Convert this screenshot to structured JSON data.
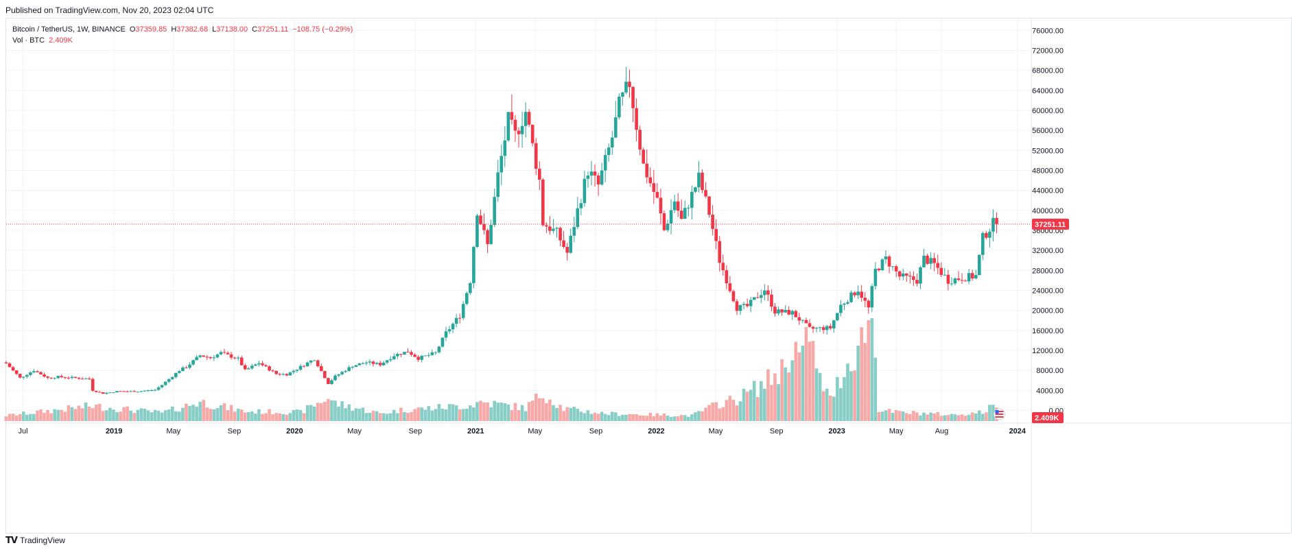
{
  "header": {
    "published": "Published on TradingView.com, Nov 20, 2023 02:04 UTC"
  },
  "legend": {
    "symbol": "Bitcoin / TetherUS, 1W, BINANCE",
    "o_label": "O",
    "o": "37359.85",
    "h_label": "H",
    "h": "37382.68",
    "l_label": "L",
    "l": "37138.00",
    "c_label": "C",
    "c": "37251.11",
    "change": "−108.75 (−0.29%)",
    "vol_label": "Vol · BTC",
    "vol": "2.409K"
  },
  "footer": {
    "brand": "TradingView"
  },
  "colors": {
    "up": "#26a69a",
    "down": "#f23645",
    "up_vol": "#89cdc7",
    "down_vol": "#f7a9a7",
    "grid": "#f0f3fa",
    "axis_text": "#131722"
  },
  "chart_data": {
    "type": "candlestick",
    "interval": "1W",
    "x_range": [
      "2018-05-28",
      "2024-01-29"
    ],
    "y_range": [
      -2000,
      77000
    ],
    "y_ticks": [
      76000,
      72000,
      68000,
      64000,
      60000,
      56000,
      52000,
      48000,
      44000,
      40000,
      36000,
      32000,
      28000,
      24000,
      20000,
      16000,
      12000,
      8000,
      4000,
      0
    ],
    "y_tick_labels": [
      "76000.00",
      "72000.00",
      "68000.00",
      "64000.00",
      "60000.00",
      "56000.00",
      "52000.00",
      "48000.00",
      "44000.00",
      "40000.00",
      "36000.00",
      "32000.00",
      "28000.00",
      "24000.00",
      "20000.00",
      "16000.00",
      "12000.00",
      "8000.00",
      "4000.00",
      "0.00"
    ],
    "x_ticks": [
      {
        "date": "2018-07-01",
        "label": "Jul"
      },
      {
        "date": "2019-01-01",
        "label": "2019"
      },
      {
        "date": "2019-05-01",
        "label": "May"
      },
      {
        "date": "2019-09-01",
        "label": "Sep"
      },
      {
        "date": "2020-01-01",
        "label": "2020"
      },
      {
        "date": "2020-05-01",
        "label": "May"
      },
      {
        "date": "2020-09-01",
        "label": "Sep"
      },
      {
        "date": "2021-01-01",
        "label": "2021"
      },
      {
        "date": "2021-05-01",
        "label": "May"
      },
      {
        "date": "2021-09-01",
        "label": "Sep"
      },
      {
        "date": "2022-01-01",
        "label": "2022"
      },
      {
        "date": "2022-05-01",
        "label": "May"
      },
      {
        "date": "2022-09-01",
        "label": "Sep"
      },
      {
        "date": "2023-01-01",
        "label": "2023"
      },
      {
        "date": "2023-05-01",
        "label": "May"
      },
      {
        "date": "2023-08-01",
        "label": "Aug"
      },
      {
        "date": "2024-01-01",
        "label": "2024"
      }
    ],
    "close_path": [
      [
        "2018-05-28",
        9400
      ],
      [
        "2018-06-25",
        6500
      ],
      [
        "2018-07-23",
        8000
      ],
      [
        "2018-08-20",
        6500
      ],
      [
        "2018-09-10",
        6700
      ],
      [
        "2018-10-15",
        6500
      ],
      [
        "2018-11-12",
        6300
      ],
      [
        "2018-11-19",
        4000
      ],
      [
        "2018-12-10",
        3400
      ],
      [
        "2019-01-07",
        3800
      ],
      [
        "2019-02-18",
        3800
      ],
      [
        "2019-03-25",
        4100
      ],
      [
        "2019-04-08",
        5100
      ],
      [
        "2019-05-13",
        8000
      ],
      [
        "2019-05-27",
        8700
      ],
      [
        "2019-06-24",
        11000
      ],
      [
        "2019-07-15",
        10500
      ],
      [
        "2019-08-05",
        11500
      ],
      [
        "2019-09-09",
        10300
      ],
      [
        "2019-09-23",
        8000
      ],
      [
        "2019-10-21",
        9500
      ],
      [
        "2019-11-25",
        7300
      ],
      [
        "2019-12-16",
        7200
      ],
      [
        "2020-01-13",
        8700
      ],
      [
        "2020-02-10",
        10300
      ],
      [
        "2020-03-09",
        5400
      ],
      [
        "2020-03-23",
        6800
      ],
      [
        "2020-04-27",
        8900
      ],
      [
        "2020-05-25",
        9600
      ],
      [
        "2020-06-22",
        9200
      ],
      [
        "2020-07-20",
        11000
      ],
      [
        "2020-08-17",
        11800
      ],
      [
        "2020-09-07",
        10400
      ],
      [
        "2020-10-12",
        11500
      ],
      [
        "2020-11-02",
        15500
      ],
      [
        "2020-11-30",
        19000
      ],
      [
        "2020-12-21",
        26000
      ],
      [
        "2021-01-04",
        40000
      ],
      [
        "2021-01-25",
        33000
      ],
      [
        "2021-02-15",
        47000
      ],
      [
        "2021-03-08",
        58000
      ],
      [
        "2021-03-22",
        55000
      ],
      [
        "2021-04-12",
        59800
      ],
      [
        "2021-05-10",
        46000
      ],
      [
        "2021-05-17",
        37500
      ],
      [
        "2021-06-14",
        35500
      ],
      [
        "2021-07-05",
        31500
      ],
      [
        "2021-07-26",
        40000
      ],
      [
        "2021-08-16",
        48000
      ],
      [
        "2021-09-06",
        45000
      ],
      [
        "2021-10-04",
        54600
      ],
      [
        "2021-10-18",
        61000
      ],
      [
        "2021-11-08",
        65500
      ],
      [
        "2021-11-22",
        57000
      ],
      [
        "2021-12-06",
        49000
      ],
      [
        "2022-01-03",
        42000
      ],
      [
        "2022-01-17",
        36000
      ],
      [
        "2022-02-07",
        42000
      ],
      [
        "2022-02-21",
        38000
      ],
      [
        "2022-03-28",
        46500
      ],
      [
        "2022-04-18",
        39500
      ],
      [
        "2022-05-09",
        30000
      ],
      [
        "2022-06-13",
        20500
      ],
      [
        "2022-07-04",
        20800
      ],
      [
        "2022-08-08",
        24200
      ],
      [
        "2022-08-29",
        19800
      ],
      [
        "2022-10-03",
        19500
      ],
      [
        "2022-11-07",
        16300
      ],
      [
        "2022-12-19",
        16500
      ],
      [
        "2023-01-09",
        21000
      ],
      [
        "2023-02-13",
        24200
      ],
      [
        "2023-03-06",
        20400
      ],
      [
        "2023-03-20",
        28000
      ],
      [
        "2023-04-10",
        30300
      ],
      [
        "2023-05-08",
        26800
      ],
      [
        "2023-06-12",
        26000
      ],
      [
        "2023-06-26",
        30400
      ],
      [
        "2023-07-17",
        29200
      ],
      [
        "2023-08-14",
        26000
      ],
      [
        "2023-09-11",
        26500
      ],
      [
        "2023-10-09",
        26900
      ],
      [
        "2023-10-23",
        34500
      ],
      [
        "2023-11-13",
        37400
      ],
      [
        "2023-11-20",
        37251
      ]
    ],
    "volume_path": [
      [
        "2018-05-28",
        0.8
      ],
      [
        "2018-11-19",
        2.2
      ],
      [
        "2019-04-08",
        1.2
      ],
      [
        "2019-06-24",
        2.8
      ],
      [
        "2019-09-23",
        1.4
      ],
      [
        "2020-01-13",
        1.3
      ],
      [
        "2020-03-09",
        3.4
      ],
      [
        "2020-03-23",
        2.6
      ],
      [
        "2020-06-22",
        1.1
      ],
      [
        "2020-08-03",
        1.6
      ],
      [
        "2020-12-21",
        2.3
      ],
      [
        "2021-01-11",
        2.8
      ],
      [
        "2021-04-12",
        1.9
      ],
      [
        "2021-05-17",
        4.1
      ],
      [
        "2021-06-28",
        1.8
      ],
      [
        "2021-09-20",
        1.1
      ],
      [
        "2022-03-14",
        0.8
      ],
      [
        "2022-05-09",
        2.6
      ],
      [
        "2022-06-13",
        3.2
      ],
      [
        "2022-08-08",
        5.5
      ],
      [
        "2022-09-19",
        8.0
      ],
      [
        "2022-10-03",
        11.2
      ],
      [
        "2022-10-24",
        8.9
      ],
      [
        "2022-11-07",
        13.7
      ],
      [
        "2022-11-21",
        7.0
      ],
      [
        "2022-12-19",
        3.1
      ],
      [
        "2023-01-09",
        6.5
      ],
      [
        "2023-02-20",
        11.8
      ],
      [
        "2023-03-13",
        16.6
      ],
      [
        "2023-03-27",
        1.8
      ],
      [
        "2023-04-24",
        1.3
      ],
      [
        "2023-07-10",
        1.1
      ],
      [
        "2023-08-21",
        0.9
      ],
      [
        "2023-10-23",
        1.3
      ],
      [
        "2023-11-20",
        2.409
      ]
    ],
    "volume_axis_marker": "2.409K",
    "last_price": 37251.11,
    "last_price_label": "37251.11"
  }
}
